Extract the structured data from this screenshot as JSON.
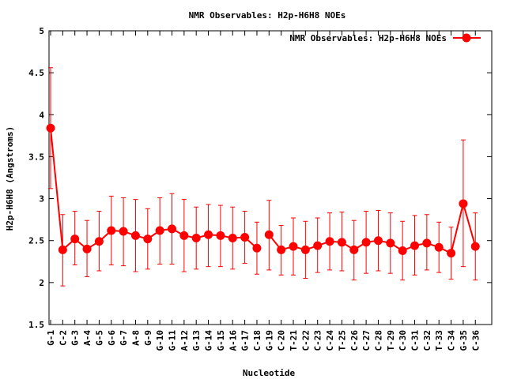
{
  "chart_data": {
    "type": "line",
    "title": "NMR Observables: H2p-H6H8 NOEs",
    "xlabel": "Nucleotide",
    "ylabel": "H2p-H6H8 (Angstroms)",
    "ylim": [
      1.5,
      5
    ],
    "yticks": [
      "1.5",
      "2",
      "2.5",
      "3",
      "3.5",
      "4",
      "4.5",
      "5"
    ],
    "grid": false,
    "legend_position": "top-right",
    "categories": [
      "G-1",
      "C-2",
      "G-3",
      "A-4",
      "G-5",
      "G-6",
      "G-7",
      "A-8",
      "G-9",
      "G-10",
      "G-11",
      "A-12",
      "G-13",
      "G-14",
      "G-15",
      "A-16",
      "G-17",
      "C-18",
      "G-19",
      "C-20",
      "T-21",
      "C-22",
      "C-23",
      "C-24",
      "T-25",
      "C-26",
      "C-27",
      "C-28",
      "T-29",
      "C-30",
      "C-31",
      "C-32",
      "T-33",
      "C-34",
      "G-35",
      "C-36"
    ],
    "segments": [
      [
        0,
        17
      ],
      [
        18,
        35
      ]
    ],
    "series": [
      {
        "name": "NMR Observables: H2p-H6H8 NOEs",
        "color": "#ff0000",
        "values": [
          3.84,
          2.39,
          2.52,
          2.4,
          2.49,
          2.62,
          2.61,
          2.56,
          2.52,
          2.62,
          2.64,
          2.56,
          2.53,
          2.57,
          2.56,
          2.53,
          2.54,
          2.41,
          2.57,
          2.39,
          2.43,
          2.39,
          2.44,
          2.49,
          2.48,
          2.39,
          2.48,
          2.5,
          2.47,
          2.38,
          2.44,
          2.47,
          2.42,
          2.35,
          2.94,
          2.43
        ],
        "error_low": [
          3.12,
          1.96,
          2.21,
          2.07,
          2.14,
          2.21,
          2.2,
          2.13,
          2.16,
          2.22,
          2.22,
          2.13,
          2.16,
          2.19,
          2.19,
          2.16,
          2.23,
          2.1,
          2.15,
          2.09,
          2.09,
          2.05,
          2.12,
          2.15,
          2.14,
          2.03,
          2.11,
          2.14,
          2.11,
          2.03,
          2.09,
          2.15,
          2.12,
          2.04,
          2.19,
          2.03
        ],
        "error_high": [
          4.56,
          2.81,
          2.85,
          2.74,
          2.85,
          3.03,
          3.01,
          2.99,
          2.88,
          3.01,
          3.06,
          2.99,
          2.9,
          2.93,
          2.92,
          2.9,
          2.85,
          2.72,
          2.98,
          2.68,
          2.77,
          2.73,
          2.77,
          2.83,
          2.84,
          2.74,
          2.85,
          2.86,
          2.83,
          2.73,
          2.8,
          2.81,
          2.72,
          2.66,
          3.7,
          2.83
        ]
      }
    ]
  }
}
